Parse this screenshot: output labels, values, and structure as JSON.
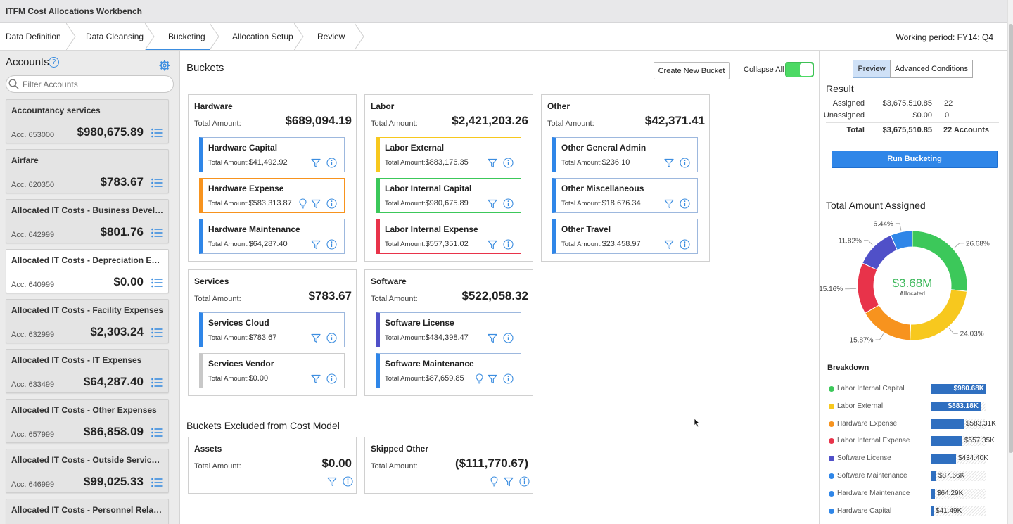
{
  "app": {
    "title": "ITFM Cost Allocations Workbench"
  },
  "wizard": {
    "steps": [
      "Data Definition",
      "Data Cleansing",
      "Bucketing",
      "Allocation Setup",
      "Review"
    ],
    "active": "Bucketing",
    "working_period_label": "Working period:",
    "working_period_value": "FY14: Q4"
  },
  "accounts": {
    "title": "Accounts",
    "filter_placeholder": "Filter Accounts",
    "items": [
      {
        "name": "Accountancy services",
        "number": "Acc. 653000",
        "amount": "$980,675.89"
      },
      {
        "name": "Airfare",
        "number": "Acc. 620350",
        "amount": "$783.67"
      },
      {
        "name": "Allocated IT Costs - Business Develo...",
        "number": "Acc. 642999",
        "amount": "$801.76"
      },
      {
        "name": "Allocated IT Costs - Depreciation Exp...",
        "number": "Acc. 640999",
        "amount": "$0.00"
      },
      {
        "name": "Allocated IT Costs - Facility Expenses",
        "number": "Acc. 632999",
        "amount": "$2,303.24"
      },
      {
        "name": "Allocated IT Costs - IT Expenses",
        "number": "Acc. 633499",
        "amount": "$64,287.40"
      },
      {
        "name": "Allocated IT Costs - Other Expenses",
        "number": "Acc. 657999",
        "amount": "$86,858.09"
      },
      {
        "name": "Allocated IT Costs - Outside Service ...",
        "number": "Acc. 646999",
        "amount": "$99,025.33"
      },
      {
        "name": "Allocated IT Costs - Personnel Relate...",
        "number": "",
        "amount": ""
      }
    ]
  },
  "buckets": {
    "title": "Buckets",
    "create_label": "Create New Bucket",
    "collapse_label": "Collapse All",
    "total_label": "Total Amount:",
    "sub_total_label": "Total Amount:",
    "groups": [
      {
        "name": "Hardware",
        "total": "$689,094.19",
        "subs": [
          {
            "name": "Hardware Capital",
            "amount": "$41,492.92",
            "color": "#2f86e8"
          },
          {
            "name": "Hardware Expense",
            "amount": "$583,313.87",
            "color": "#f7931e"
          },
          {
            "name": "Hardware Maintenance",
            "amount": "$64,287.40",
            "color": "#2f86e8"
          }
        ]
      },
      {
        "name": "Labor",
        "total": "$2,421,203.26",
        "subs": [
          {
            "name": "Labor External",
            "amount": "$883,176.35",
            "color": "#f7c81e"
          },
          {
            "name": "Labor Internal Capital",
            "amount": "$980,675.89",
            "color": "#3cc85a"
          },
          {
            "name": "Labor Internal Expense",
            "amount": "$557,351.02",
            "color": "#e8334a"
          }
        ]
      },
      {
        "name": "Other",
        "total": "$42,371.41",
        "subs": [
          {
            "name": "Other General Admin",
            "amount": "$236.10",
            "color": "#2f86e8"
          },
          {
            "name": "Other Miscellaneous",
            "amount": "$18,676.34",
            "color": "#2f86e8"
          },
          {
            "name": "Other Travel",
            "amount": "$23,458.97",
            "color": "#2f86e8"
          }
        ]
      },
      {
        "name": "Services",
        "total": "$783.67",
        "subs": [
          {
            "name": "Services Cloud",
            "amount": "$783.67",
            "color": "#2f86e8"
          },
          {
            "name": "Services Vendor",
            "amount": "$0.00",
            "color": "#c8c8c8"
          }
        ]
      },
      {
        "name": "Software",
        "total": "$522,058.32",
        "subs": [
          {
            "name": "Software License",
            "amount": "$434,398.47",
            "color": "#5050c8"
          },
          {
            "name": "Software Maintenance",
            "amount": "$87,659.85",
            "color": "#2f86e8"
          }
        ]
      }
    ]
  },
  "excluded": {
    "title": "Buckets Excluded from Cost Model",
    "items": [
      {
        "name": "Assets",
        "total": "$0.00"
      },
      {
        "name": "Skipped Other",
        "total": "($111,770.67)"
      }
    ]
  },
  "result": {
    "tabs": [
      "Preview",
      "Advanced Conditions"
    ],
    "title": "Result",
    "rows": [
      {
        "label": "Assigned",
        "amount": "$3,675,510.85",
        "count": "22"
      },
      {
        "label": "Unassigned",
        "amount": "$0.00",
        "count": "0"
      },
      {
        "label": "Total",
        "amount": "$3,675,510.85",
        "count": "22 Accounts"
      }
    ],
    "run_label": "Run Bucketing"
  },
  "chart_data": {
    "type": "pie",
    "title": "Total Amount Assigned",
    "center_value": "$3.68M",
    "center_label": "Allocated",
    "slices": [
      {
        "label": "26.68%",
        "value": 26.68,
        "color": "#3cc85a"
      },
      {
        "label": "24.03%",
        "value": 24.03,
        "color": "#f7c81e"
      },
      {
        "label": "15.87%",
        "value": 15.87,
        "color": "#f7931e"
      },
      {
        "label": "15.16%",
        "value": 15.16,
        "color": "#e8334a"
      },
      {
        "label": "11.82%",
        "value": 11.82,
        "color": "#5050c8"
      },
      {
        "label": "6.44%",
        "value": 6.44,
        "color": "#2f86e8"
      }
    ]
  },
  "breakdown": {
    "title": "Breakdown",
    "items": [
      {
        "label": "Labor Internal Capital",
        "value": "$980.68K",
        "fraction": 1.0,
        "color": "#3cc85a"
      },
      {
        "label": "Labor External",
        "value": "$883.18K",
        "fraction": 0.9,
        "color": "#f7c81e"
      },
      {
        "label": "Hardware Expense",
        "value": "$583.31K",
        "fraction": 0.595,
        "color": "#f7931e"
      },
      {
        "label": "Labor Internal Expense",
        "value": "$557.35K",
        "fraction": 0.568,
        "color": "#e8334a"
      },
      {
        "label": "Software License",
        "value": "$434.40K",
        "fraction": 0.443,
        "color": "#5050c8"
      },
      {
        "label": "Software Maintenance",
        "value": "$87.66K",
        "fraction": 0.089,
        "color": "#2f86e8"
      },
      {
        "label": "Hardware Maintenance",
        "value": "$64.29K",
        "fraction": 0.066,
        "color": "#2f86e8"
      },
      {
        "label": "Hardware Capital",
        "value": "$41.49K",
        "fraction": 0.042,
        "color": "#2f86e8"
      }
    ]
  }
}
